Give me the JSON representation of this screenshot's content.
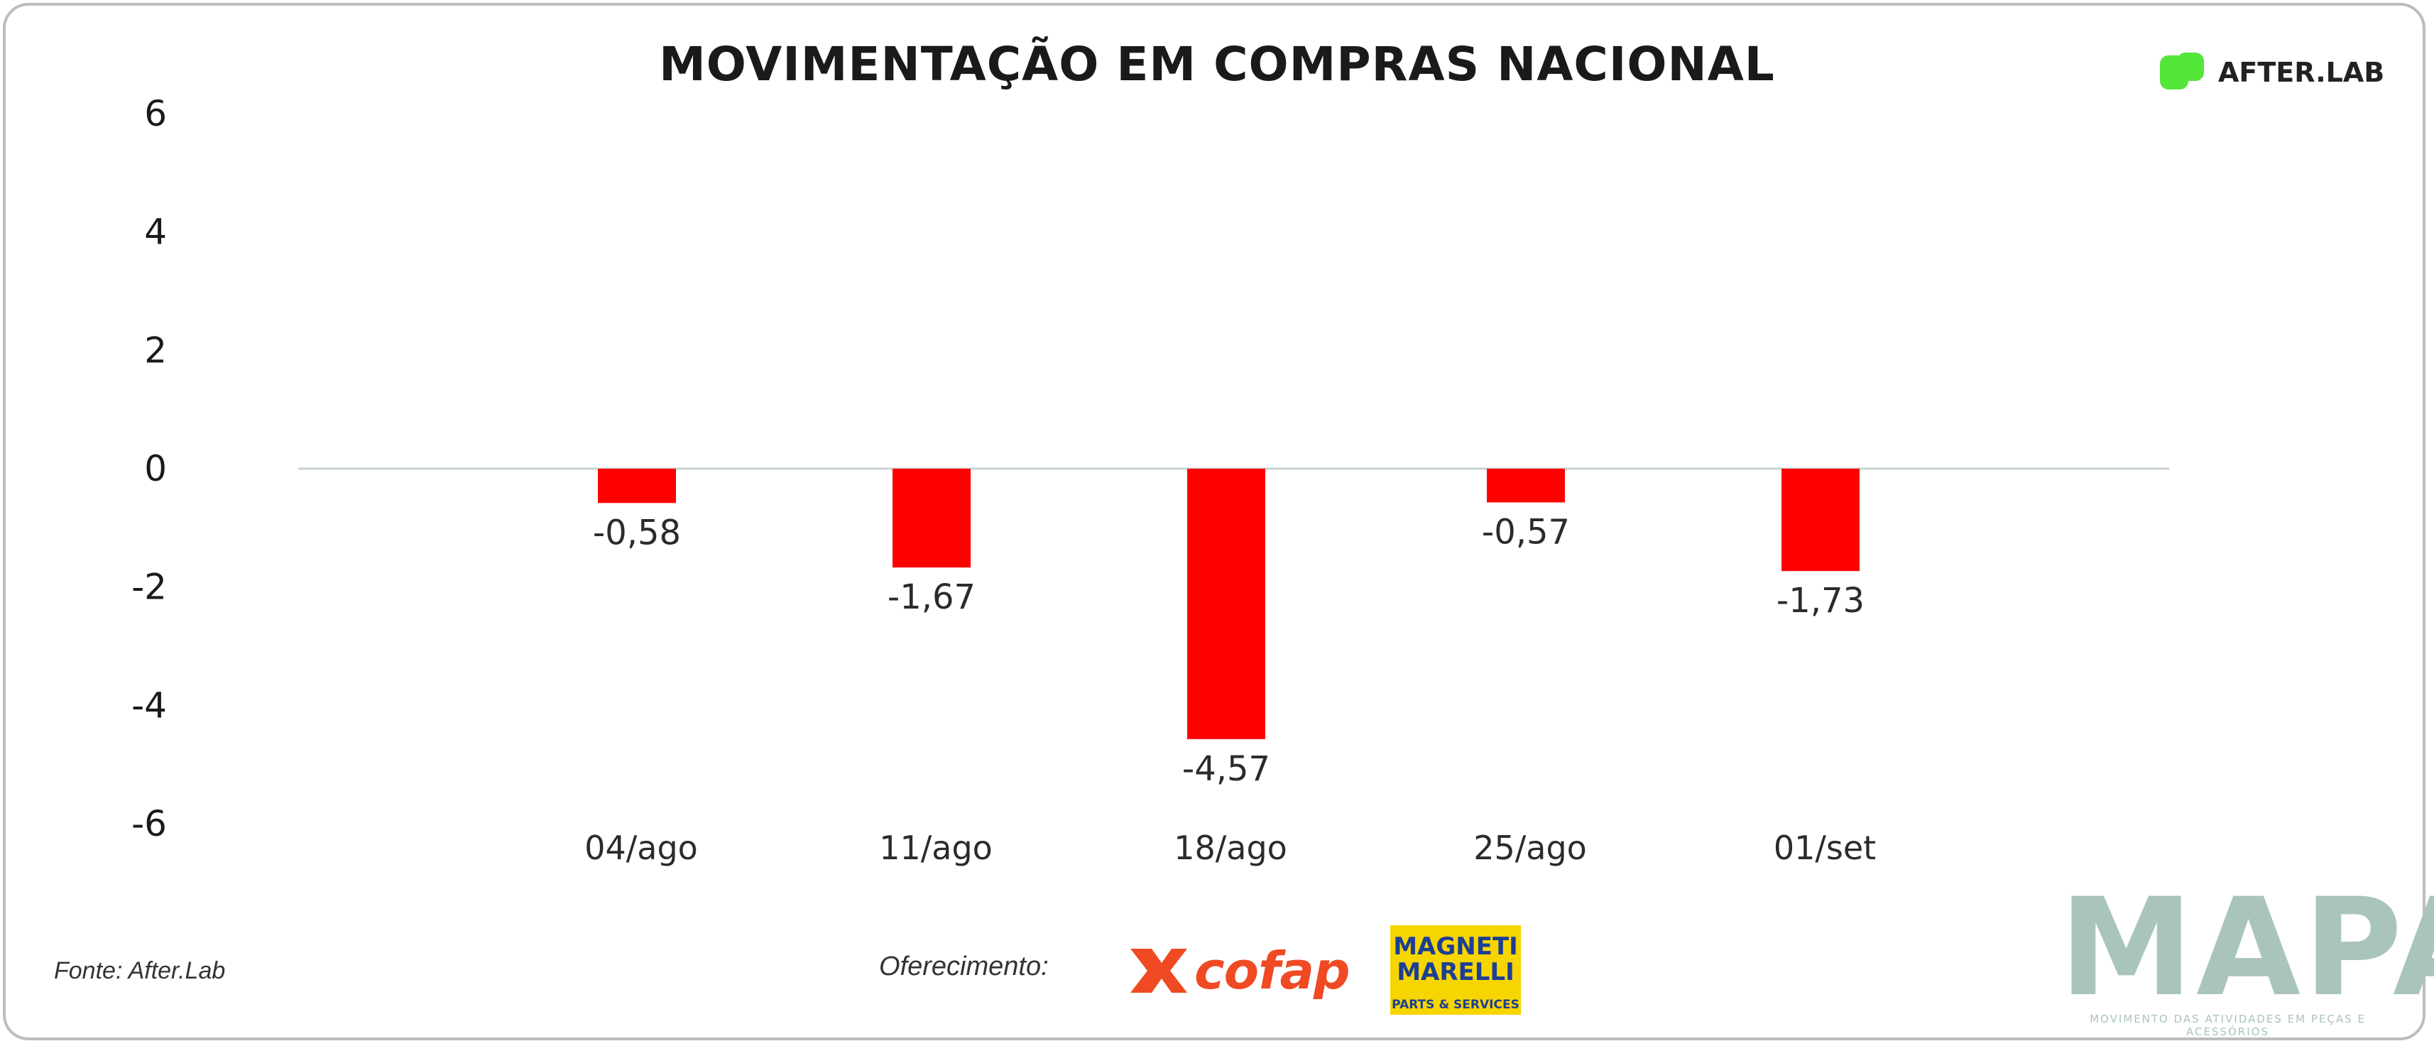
{
  "chart_data": {
    "type": "bar",
    "title": "MOVIMENTAÇÃO EM COMPRAS NACIONAL",
    "categories": [
      "04/ago",
      "11/ago",
      "18/ago",
      "25/ago",
      "01/set"
    ],
    "values": [
      -0.58,
      -1.67,
      -4.57,
      -0.57,
      -1.73
    ],
    "data_labels": [
      "-0,58",
      "-1,67",
      "-4,57",
      "-0,57",
      "-1,73"
    ],
    "yticks": [
      6,
      4,
      2,
      0,
      -2,
      -4,
      -6
    ],
    "ylim": [
      -6,
      6
    ],
    "xlabel": "",
    "ylabel": "",
    "bar_color": "#ff0000",
    "grid": false
  },
  "brand": {
    "name": "AFTER.LAB",
    "accent": "#55e63a"
  },
  "footer": {
    "source": "Fonte: After.Lab",
    "sponsor_label": "Oferecimento:",
    "sponsor1": "cofap",
    "sponsor2_line1": "MAGNETI",
    "sponsor2_line2": "MARELLI",
    "sponsor2_line3": "PARTS & SERVICES",
    "mapa_word": "MAPA",
    "mapa_sub": "MOVIMENTO DAS ATIVIDADES EM PEÇAS E ACESSÓRIOS"
  }
}
